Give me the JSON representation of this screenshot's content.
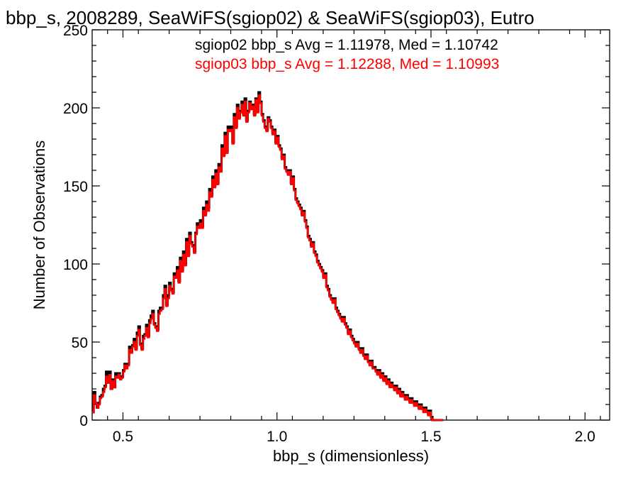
{
  "chart_data": {
    "type": "histogram",
    "title": "bbp_s, 2008289, SeaWiFS(sgiop02) & SeaWiFS(sgiop03), Eutro",
    "xlabel": "bbp_s (dimensionless)",
    "ylabel": "Number of Observations",
    "xlim": [
      0.4,
      2.08
    ],
    "ylim": [
      0,
      250
    ],
    "x_ticks": [
      0.5,
      1.0,
      1.5,
      2.0
    ],
    "x_tick_labels": [
      "0.5",
      "1.0",
      "1.5",
      "2.0"
    ],
    "y_ticks": [
      0,
      50,
      100,
      150,
      200,
      250
    ],
    "y_tick_labels": [
      "0",
      "50",
      "100",
      "150",
      "200",
      "250"
    ],
    "grid": false,
    "legend_position": "top-right",
    "bin_start": 0.4,
    "bin_width": 0.005,
    "series": [
      {
        "name": "sgiop02",
        "legend_text": "sgiop02 bbp_s Avg = 1.11978, Med = 1.10742",
        "color": "#000000",
        "values": [
          5,
          18,
          11,
          8,
          11,
          15,
          16,
          20,
          22,
          31,
          24,
          31,
          20,
          26,
          21,
          30,
          28,
          30,
          27,
          28,
          32,
          36,
          35,
          36,
          47,
          44,
          48,
          52,
          46,
          56,
          60,
          49,
          46,
          54,
          55,
          61,
          54,
          64,
          67,
          70,
          62,
          60,
          58,
          70,
          72,
          72,
          80,
          86,
          74,
          80,
          88,
          84,
          82,
          94,
          92,
          98,
          89,
          104,
          96,
          108,
          100,
          116,
          106,
          120,
          114,
          112,
          108,
          120,
          126,
          124,
          128,
          124,
          136,
          132,
          140,
          136,
          148,
          144,
          156,
          150,
          160,
          152,
          164,
          160,
          176,
          170,
          184,
          172,
          188,
          186,
          188,
          178,
          196,
          188,
          202,
          194,
          198,
          204,
          196,
          206,
          192,
          198,
          204,
          200,
          202,
          196,
          206,
          198,
          210,
          204,
          196,
          192,
          188,
          186,
          194,
          192,
          188,
          184,
          186,
          178,
          182,
          176,
          174,
          168,
          170,
          162,
          160,
          158,
          160,
          152,
          156,
          148,
          142,
          140,
          138,
          136,
          132,
          134,
          128,
          124,
          118,
          116,
          112,
          114,
          108,
          106,
          102,
          100,
          98,
          96,
          92,
          94,
          86,
          84,
          80,
          78,
          76,
          78,
          72,
          70,
          68,
          66,
          64,
          66,
          62,
          60,
          56,
          58,
          54,
          52,
          50,
          48,
          50,
          46,
          44,
          46,
          42,
          40,
          42,
          38,
          36,
          38,
          34,
          34,
          32,
          30,
          32,
          28,
          30,
          26,
          28,
          24,
          26,
          22,
          24,
          22,
          20,
          22,
          18,
          20,
          16,
          18,
          16,
          14,
          16,
          14,
          12,
          14,
          12,
          10,
          12,
          10,
          8,
          10,
          8,
          6,
          8,
          6,
          4,
          6,
          2,
          0,
          0,
          0,
          0,
          0,
          0,
          0
        ]
      },
      {
        "name": "sgiop03",
        "legend_text": "sgiop03 bbp_s Avg = 1.12288, Med = 1.10993",
        "color": "#ff0000",
        "values": [
          5,
          16,
          11,
          8,
          10,
          14,
          15,
          18,
          21,
          28,
          24,
          29,
          20,
          25,
          21,
          28,
          27,
          29,
          26,
          27,
          31,
          35,
          33,
          35,
          45,
          43,
          47,
          50,
          45,
          54,
          58,
          48,
          45,
          52,
          54,
          59,
          53,
          62,
          65,
          68,
          61,
          59,
          57,
          68,
          70,
          71,
          78,
          84,
          73,
          78,
          86,
          83,
          81,
          92,
          91,
          96,
          88,
          102,
          95,
          106,
          99,
          114,
          105,
          118,
          113,
          111,
          107,
          119,
          124,
          123,
          126,
          123,
          134,
          131,
          138,
          134,
          146,
          143,
          154,
          149,
          158,
          151,
          162,
          159,
          174,
          169,
          182,
          171,
          186,
          185,
          186,
          177,
          194,
          187,
          200,
          193,
          197,
          202,
          195,
          204,
          191,
          197,
          203,
          199,
          201,
          195,
          205,
          197,
          208,
          203,
          195,
          191,
          187,
          185,
          193,
          191,
          187,
          183,
          185,
          177,
          181,
          175,
          173,
          167,
          169,
          161,
          159,
          157,
          159,
          151,
          155,
          147,
          141,
          139,
          137,
          135,
          131,
          133,
          127,
          123,
          117,
          115,
          111,
          113,
          107,
          105,
          101,
          99,
          97,
          95,
          91,
          93,
          85,
          83,
          79,
          77,
          75,
          77,
          71,
          69,
          67,
          65,
          63,
          65,
          61,
          59,
          55,
          57,
          53,
          51,
          49,
          47,
          49,
          45,
          43,
          45,
          41,
          39,
          41,
          37,
          35,
          37,
          33,
          33,
          31,
          29,
          31,
          27,
          29,
          25,
          27,
          23,
          25,
          21,
          23,
          21,
          19,
          21,
          17,
          19,
          15,
          17,
          15,
          13,
          15,
          13,
          11,
          13,
          11,
          9,
          11,
          9,
          7,
          9,
          7,
          5,
          7,
          5,
          3,
          5,
          1,
          0,
          0,
          0,
          0,
          0,
          0,
          0
        ]
      }
    ]
  }
}
